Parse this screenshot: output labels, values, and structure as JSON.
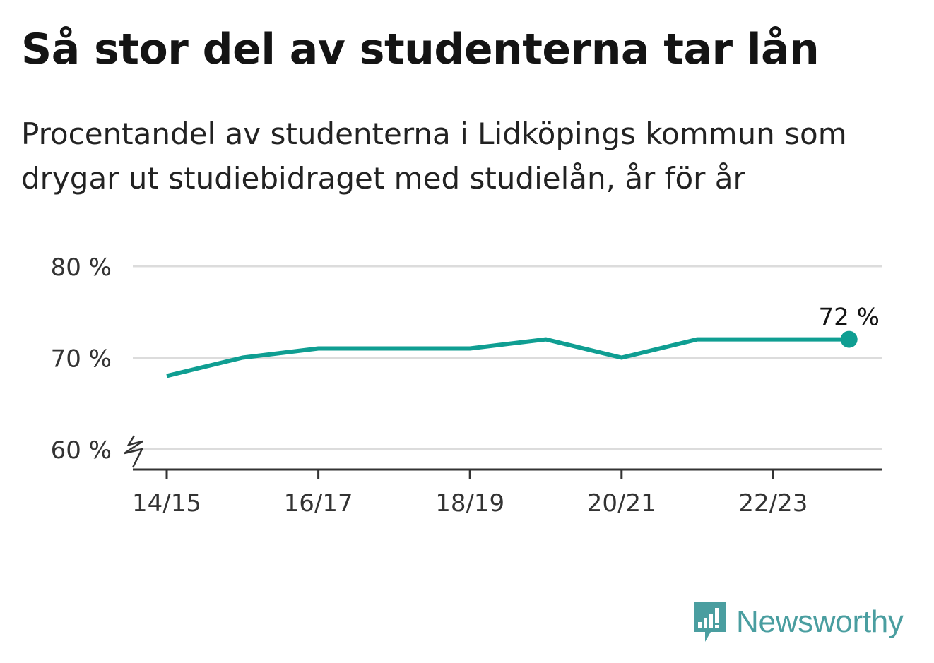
{
  "title": "Så stor del av studenterna tar lån",
  "subtitle": "Procentandel av studenterna i Lidköpings kommun som drygar ut studiebidraget med studielån, år för år",
  "brand": {
    "name": "Newsworthy",
    "color": "#4a9ea0"
  },
  "chart_data": {
    "type": "line",
    "x": [
      "14/15",
      "15/16",
      "16/17",
      "17/18",
      "18/19",
      "19/20",
      "20/21",
      "21/22",
      "22/23",
      "23/24"
    ],
    "series": [
      {
        "values": [
          68,
          70,
          71,
          71,
          71,
          72,
          70,
          72,
          72,
          72
        ],
        "color": "#0f9e92"
      }
    ],
    "x_tick_labels": [
      "14/15",
      "16/17",
      "18/19",
      "20/21",
      "22/23"
    ],
    "y_ticks": [
      60,
      70,
      80
    ],
    "y_tick_labels": [
      "60 %",
      "70 %",
      "80 %"
    ],
    "ylim": [
      60,
      80
    ],
    "y_axis_break": true,
    "grid": true,
    "end_label": "72 %",
    "xlabel": "",
    "ylabel": ""
  }
}
